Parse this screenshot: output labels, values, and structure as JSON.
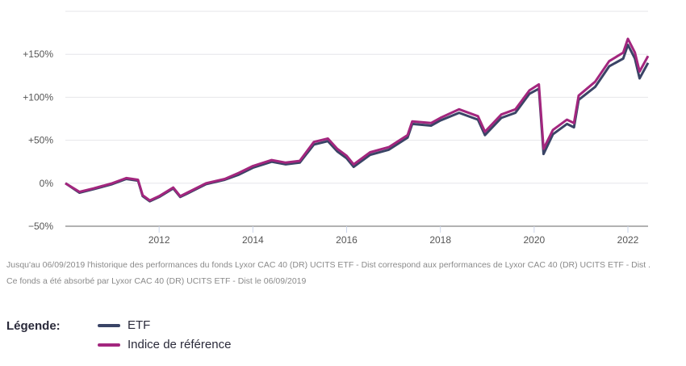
{
  "chart_data": {
    "type": "line",
    "xlim": [
      2010.0,
      2022.43
    ],
    "ylim": [
      -50,
      200
    ],
    "yticks": [
      -50,
      0,
      50,
      100,
      150,
      200
    ],
    "ytick_labels": [
      "−50%",
      "0%",
      "+50%",
      "+100%",
      "+150%",
      ""
    ],
    "xticks": [
      2012,
      2014,
      2016,
      2018,
      2020,
      2022
    ],
    "xtick_labels": [
      "2012",
      "2014",
      "2016",
      "2018",
      "2020",
      "2022"
    ],
    "grid": true,
    "series": [
      {
        "name": "Indice de référence",
        "color": "#a3267e",
        "x": [
          2010.0,
          2010.3,
          2010.6,
          2011.0,
          2011.3,
          2011.55,
          2011.65,
          2011.8,
          2012.0,
          2012.3,
          2012.45,
          2012.6,
          2013.0,
          2013.4,
          2013.7,
          2014.0,
          2014.4,
          2014.7,
          2015.0,
          2015.3,
          2015.6,
          2015.8,
          2016.0,
          2016.15,
          2016.5,
          2016.9,
          2017.3,
          2017.4,
          2017.8,
          2018.0,
          2018.4,
          2018.8,
          2018.95,
          2019.3,
          2019.6,
          2019.9,
          2020.1,
          2020.2,
          2020.4,
          2020.7,
          2020.85,
          2020.95,
          2021.3,
          2021.6,
          2021.9,
          2022.0,
          2022.15,
          2022.25,
          2022.43
        ],
        "y": [
          0,
          -10,
          -6,
          0,
          6,
          4,
          -14,
          -20,
          -15,
          -5,
          -15,
          -11,
          0,
          5,
          12,
          20,
          27,
          24,
          26,
          48,
          52,
          40,
          32,
          22,
          36,
          42,
          56,
          72,
          70,
          76,
          86,
          78,
          60,
          80,
          86,
          108,
          115,
          40,
          62,
          74,
          70,
          102,
          118,
          142,
          152,
          168,
          152,
          130,
          148
        ]
      },
      {
        "name": "ETF",
        "color": "#3a4466",
        "x": [
          2010.0,
          2010.3,
          2010.6,
          2011.0,
          2011.3,
          2011.55,
          2011.65,
          2011.8,
          2012.0,
          2012.3,
          2012.45,
          2012.6,
          2013.0,
          2013.4,
          2013.7,
          2014.0,
          2014.4,
          2014.7,
          2015.0,
          2015.3,
          2015.6,
          2015.8,
          2016.0,
          2016.15,
          2016.5,
          2016.9,
          2017.3,
          2017.4,
          2017.8,
          2018.0,
          2018.4,
          2018.8,
          2018.95,
          2019.3,
          2019.6,
          2019.9,
          2020.1,
          2020.2,
          2020.4,
          2020.7,
          2020.85,
          2020.95,
          2021.3,
          2021.6,
          2021.9,
          2022.0,
          2022.15,
          2022.25,
          2022.43
        ],
        "y": [
          0,
          -11,
          -7,
          -1,
          5,
          3,
          -15,
          -21,
          -16,
          -6,
          -16,
          -12,
          -1,
          4,
          10,
          18,
          25,
          22,
          24,
          45,
          49,
          37,
          29,
          19,
          33,
          39,
          53,
          69,
          67,
          73,
          82,
          74,
          56,
          76,
          82,
          104,
          110,
          34,
          57,
          69,
          65,
          97,
          112,
          136,
          145,
          161,
          145,
          122,
          140
        ]
      }
    ]
  },
  "note": "Jusqu'au 06/09/2019 l'historique des performances du fonds Lyxor CAC 40 (DR) UCITS ETF - Dist correspond aux performances de Lyxor CAC 40 (DR) UCITS ETF - Dist . Ce fonds a été absorbé par Lyxor CAC 40 (DR) UCITS ETF - Dist le 06/09/2019",
  "legend": {
    "title": "Légende:",
    "items": [
      {
        "label": "ETF",
        "color": "#3a4466"
      },
      {
        "label": "Indice de référence",
        "color": "#a3267e"
      }
    ]
  }
}
